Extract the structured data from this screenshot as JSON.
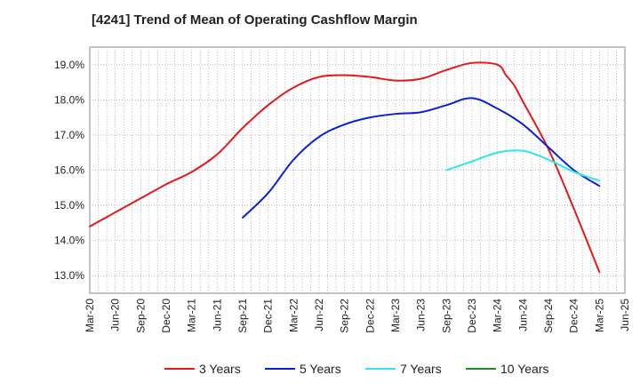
{
  "chart_data": {
    "type": "line",
    "title": "[4241]  Trend of Mean of Operating Cashflow Margin",
    "xlabel": "",
    "ylabel": "",
    "ylim": [
      12.5,
      19.5
    ],
    "y_ticks": [
      13.0,
      14.0,
      15.0,
      16.0,
      17.0,
      18.0,
      19.0
    ],
    "y_tick_labels": [
      "13.0%",
      "14.0%",
      "15.0%",
      "16.0%",
      "17.0%",
      "18.0%",
      "19.0%"
    ],
    "x_tick_labels": [
      "Mar-20",
      "Jun-20",
      "Sep-20",
      "Dec-20",
      "Mar-21",
      "Jun-21",
      "Sep-21",
      "Dec-21",
      "Mar-22",
      "Jun-22",
      "Sep-22",
      "Dec-22",
      "Mar-23",
      "Jun-23",
      "Sep-23",
      "Dec-23",
      "Mar-24",
      "Jun-24",
      "Sep-24",
      "Dec-24",
      "Mar-25",
      "Jun-25"
    ],
    "grid": true,
    "legend_position": "bottom",
    "series": [
      {
        "name": "3 Years",
        "color": "#e31a1c",
        "x": [
          "Mar-20",
          "Jun-20",
          "Sep-20",
          "Dec-20",
          "Mar-21",
          "Jun-21",
          "Sep-21",
          "Dec-21",
          "Mar-22",
          "Jun-22",
          "Sep-22",
          "Dec-22",
          "Mar-23",
          "Jun-23",
          "Sep-23",
          "Dec-23",
          "Mar-24",
          "Apr-24",
          "May-24",
          "Jun-24",
          "Sep-24",
          "Dec-24",
          "Mar-25"
        ],
        "values": [
          14.4,
          14.8,
          15.2,
          15.6,
          15.95,
          16.45,
          17.2,
          17.85,
          18.35,
          18.65,
          18.7,
          18.65,
          18.55,
          18.6,
          18.85,
          19.05,
          19.0,
          18.7,
          18.4,
          17.95,
          16.6,
          14.9,
          13.1
        ]
      },
      {
        "name": "5 Years",
        "color": "#0a1fd6",
        "x": [
          "Sep-21",
          "Dec-21",
          "Mar-22",
          "Jun-22",
          "Sep-22",
          "Dec-22",
          "Mar-23",
          "Jun-23",
          "Sep-23",
          "Dec-23",
          "Mar-24",
          "Jun-24",
          "Sep-24",
          "Dec-24",
          "Mar-25"
        ],
        "values": [
          14.65,
          15.35,
          16.3,
          16.95,
          17.3,
          17.5,
          17.6,
          17.65,
          17.85,
          18.05,
          17.75,
          17.3,
          16.65,
          16.0,
          15.55
        ]
      },
      {
        "name": "7 Years",
        "color": "#2ee6f0",
        "x": [
          "Sep-23",
          "Dec-23",
          "Mar-24",
          "Jun-24",
          "Sep-24",
          "Dec-24",
          "Mar-25"
        ],
        "values": [
          16.0,
          16.25,
          16.5,
          16.55,
          16.3,
          15.95,
          15.7
        ]
      },
      {
        "name": "10 Years",
        "color": "#1e8c1e",
        "x": [],
        "values": []
      }
    ]
  }
}
